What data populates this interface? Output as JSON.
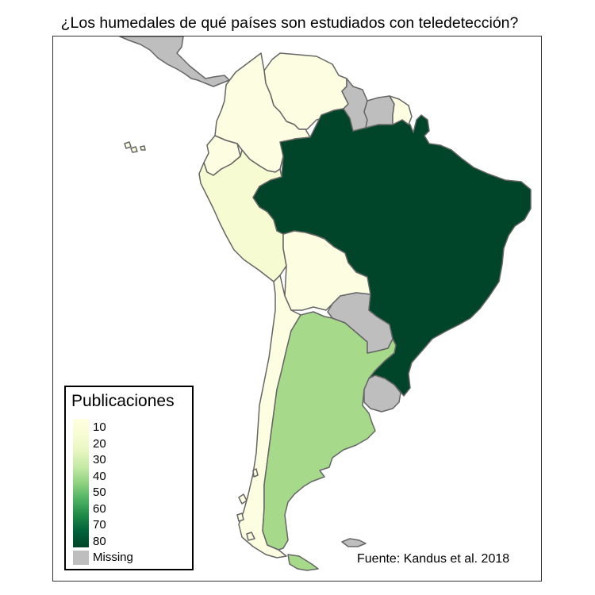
{
  "title": "¿Los humedales de qué países son estudiados con teledetección?",
  "source": "Fuente: Kandus et al. 2018",
  "legend": {
    "title": "Publicaciones",
    "labels": [
      "10",
      "20",
      "30",
      "40",
      "50",
      "60",
      "70",
      "80",
      "Missing"
    ],
    "gradient": [
      "#ffffe0",
      "#f7fcd3",
      "#e8f6c2",
      "#c4e9a5",
      "#8fd27f",
      "#4db363",
      "#1f8a47",
      "#00613a",
      "#004529"
    ],
    "missing_color": "#bebebe"
  },
  "colors": {
    "missing": "#bebebe",
    "low": "#fdfde2",
    "mid_low": "#f6fbd1",
    "argentina": "#a6da8a",
    "brazil": "#004529",
    "border": "#666666"
  },
  "countries": [
    {
      "name": "Colombia",
      "category": "low"
    },
    {
      "name": "Venezuela",
      "category": "low"
    },
    {
      "name": "Ecuador",
      "category": "low"
    },
    {
      "name": "Peru",
      "category": "mid_low"
    },
    {
      "name": "Bolivia",
      "category": "low"
    },
    {
      "name": "Chile",
      "category": "low"
    },
    {
      "name": "Argentina",
      "category": "argentina"
    },
    {
      "name": "Brazil",
      "category": "brazil"
    },
    {
      "name": "French Guiana",
      "category": "low"
    },
    {
      "name": "Guyana",
      "category": "missing"
    },
    {
      "name": "Suriname",
      "category": "missing"
    },
    {
      "name": "Paraguay",
      "category": "missing"
    },
    {
      "name": "Uruguay",
      "category": "missing"
    },
    {
      "name": "Central America",
      "category": "missing"
    },
    {
      "name": "Falkland Islands",
      "category": "missing"
    }
  ]
}
